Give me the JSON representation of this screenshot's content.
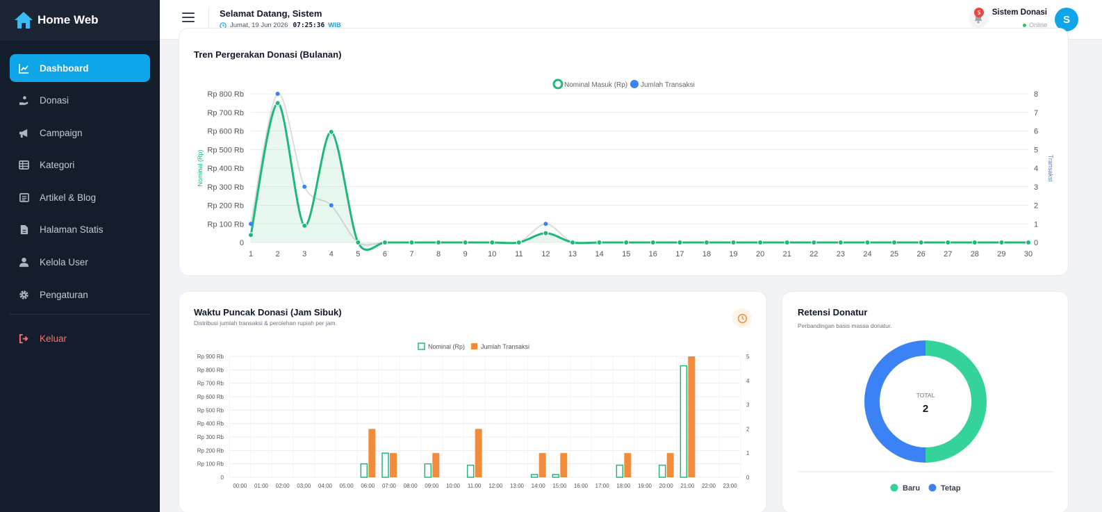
{
  "app": {
    "brand": "Home Web"
  },
  "sidebar": {
    "items": [
      {
        "label": "Dashboard",
        "icon": "chart-line-icon",
        "active": true
      },
      {
        "label": "Donasi",
        "icon": "hand-holding-icon"
      },
      {
        "label": "Campaign",
        "icon": "megaphone-icon"
      },
      {
        "label": "Kategori",
        "icon": "table-list-icon"
      },
      {
        "label": "Artikel & Blog",
        "icon": "newspaper-icon"
      },
      {
        "label": "Halaman Statis",
        "icon": "file-icon"
      },
      {
        "label": "Kelola User",
        "icon": "user-icon"
      },
      {
        "label": "Pengaturan",
        "icon": "gear-icon"
      }
    ],
    "logout": "Keluar"
  },
  "header": {
    "welcome": "Selamat Datang, Sistem",
    "date": "Jumat, 19 Jun 2026",
    "time": "07:25:36",
    "timezone": "WIB",
    "notif_count": "5",
    "user_name": "Sistem Donasi",
    "user_status": "Online",
    "avatar_initial": "S"
  },
  "colors": {
    "accent": "#0ea5e9",
    "green": "#1db87a",
    "blue": "#3b82f6",
    "orange": "#f28c3c",
    "teal": "#34d399"
  },
  "trend_card": {
    "title": "Tren Pergerakan Donasi (Bulanan)"
  },
  "peak_card": {
    "title": "Waktu Puncak Donasi (Jam Sibuk)",
    "subtitle": "Distribusi jumlah transaksi & perolehan rupiah per jam."
  },
  "retention_card": {
    "title": "Retensi Donatur",
    "subtitle": "Perbandingan basis massa donatur."
  },
  "chart_data": [
    {
      "type": "line",
      "x": [
        "1",
        "2",
        "3",
        "4",
        "5",
        "6",
        "7",
        "8",
        "9",
        "10",
        "11",
        "12",
        "13",
        "14",
        "15",
        "16",
        "17",
        "18",
        "19",
        "20",
        "21",
        "22",
        "23",
        "24",
        "25",
        "26",
        "27",
        "28",
        "29",
        "30"
      ],
      "series": [
        {
          "name": "Nominal Masuk (Rp)",
          "axis": "left",
          "values": [
            40000,
            750000,
            90000,
            595000,
            0,
            0,
            0,
            0,
            0,
            0,
            0,
            50000,
            0,
            0,
            0,
            0,
            0,
            0,
            0,
            0,
            0,
            0,
            0,
            0,
            0,
            0,
            0,
            0,
            0,
            0
          ]
        },
        {
          "name": "Jumlah Transaksi",
          "axis": "right",
          "values": [
            1,
            8,
            3,
            2,
            0,
            0,
            0,
            0,
            0,
            0,
            0,
            1,
            0,
            0,
            0,
            0,
            0,
            0,
            0,
            0,
            0,
            0,
            0,
            0,
            0,
            0,
            0,
            0,
            0,
            0
          ]
        }
      ],
      "y_left": {
        "label": "Nominal (Rp)",
        "ticks": [
          "0",
          "Rp 100 Rb",
          "Rp 200 Rb",
          "Rp 300 Rb",
          "Rp 400 Rb",
          "Rp 500 Rb",
          "Rp 600 Rb",
          "Rp 700 Rb",
          "Rp 800 Rb"
        ],
        "range": [
          0,
          800000
        ]
      },
      "y_right": {
        "label": "Transaksi",
        "ticks": [
          "0",
          "1",
          "2",
          "3",
          "4",
          "5",
          "6",
          "7",
          "8"
        ],
        "range": [
          0,
          8
        ]
      },
      "legend": "top-center",
      "grid": true
    },
    {
      "type": "bar",
      "categories": [
        "00:00",
        "01:00",
        "02:00",
        "03:00",
        "04:00",
        "05:00",
        "06:00",
        "07:00",
        "08:00",
        "09:00",
        "10:00",
        "11:00",
        "12:00",
        "13:00",
        "14:00",
        "15:00",
        "16:00",
        "17:00",
        "18:00",
        "19:00",
        "20:00",
        "21:00",
        "22:00",
        "23:00"
      ],
      "series": [
        {
          "name": "Nominal (Rp)",
          "axis": "left",
          "values": [
            0,
            0,
            0,
            0,
            0,
            0,
            100000,
            180000,
            0,
            100000,
            0,
            90000,
            0,
            0,
            20000,
            20000,
            0,
            0,
            90000,
            0,
            90000,
            830000,
            0,
            0
          ]
        },
        {
          "name": "Jumlah Transaksi",
          "axis": "right",
          "values": [
            0,
            0,
            0,
            0,
            0,
            0,
            2,
            1,
            0,
            1,
            0,
            2,
            0,
            0,
            1,
            1,
            0,
            0,
            1,
            0,
            1,
            5,
            0,
            0
          ]
        }
      ],
      "y_left": {
        "ticks": [
          "0",
          "Rp 100 Rb",
          "Rp 200 Rb",
          "Rp 300 Rb",
          "Rp 400 Rb",
          "Rp 500 Rb",
          "Rp 600 Rb",
          "Rp 700 Rb",
          "Rp 800 Rb",
          "Rp 900 Rb"
        ],
        "range": [
          0,
          900000
        ]
      },
      "y_right": {
        "ticks": [
          "0",
          "1",
          "2",
          "3",
          "4",
          "5"
        ],
        "range": [
          0,
          5
        ]
      },
      "legend": "top-center",
      "grid": true
    },
    {
      "type": "pie",
      "donut": true,
      "categories": [
        "Baru",
        "Tetap"
      ],
      "values": [
        1,
        1
      ],
      "colors": [
        "#34d399",
        "#3b82f6"
      ],
      "center_label": "TOTAL",
      "center_value": "2",
      "legend": "bottom"
    }
  ]
}
